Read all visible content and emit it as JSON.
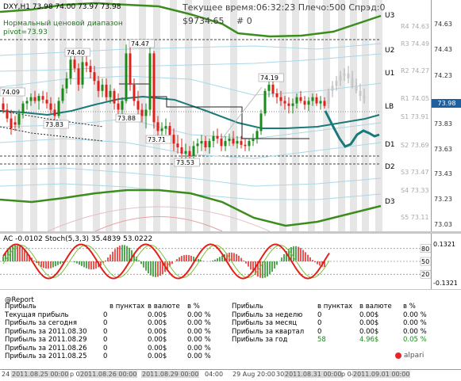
{
  "header": {
    "symbol": "DXY,H1",
    "ohlc": "73.98 74.00 73.97 73.98",
    "server_time": "Текущее время:06:32:23",
    "leverage": "Плечо:500",
    "spread": "Спрэд:0",
    "balance": "$9734.65",
    "positions": "# 0",
    "range_name": "Нормальный ценовой диапазон",
    "pivot": "pivot=73.93"
  },
  "levels": {
    "right_labels": [
      "U3",
      "U2",
      "U1",
      "LB",
      "D1",
      "D2",
      "D3"
    ],
    "grey_labels": [
      "R4 74.63",
      "R3 74.49",
      "R2 74.27",
      "R1 74.05",
      "S1 73.91",
      "S2 73.69",
      "S3 73.47",
      "S4 73.33",
      "S5 73.11"
    ]
  },
  "chart_labels": [
    "73.83",
    "74.09",
    "74.40",
    "74.47",
    "73.88",
    "73.71",
    "73.53",
    "74.19"
  ],
  "price_axis": [
    "74.63",
    "74.43",
    "74.23",
    "74.03",
    "73.83",
    "73.63",
    "73.43",
    "73.23",
    "73.03"
  ],
  "current_price": "73.98",
  "colors": {
    "bull": "#1a8a1a",
    "bear": "#e0201a",
    "envelope": "#3c8c1e",
    "ma": "#1a7a7a",
    "stripe": "#e6e6e6",
    "level_dash": "#333333",
    "current_bg": "#1f5f9f"
  },
  "oscillator": {
    "title": "AC -0.0102   Stoch(5,3,3) 35.4839 53.0222",
    "axis": [
      "80",
      "50",
      "20"
    ],
    "axis_values": [
      "0.1321",
      "-0.1321"
    ],
    "levels": [
      80,
      50,
      20
    ]
  },
  "report": {
    "title": "@Report",
    "col_headers": [
      "в пунктах",
      "в валюте",
      "в %"
    ],
    "left_rows": [
      {
        "label": "Прибыль",
        "points": "",
        "money": "",
        "pct": ""
      },
      {
        "label": "Текущая прибыль",
        "points": "0",
        "money": "0.00$",
        "pct": "0.00 %"
      },
      {
        "label": "Прибыль за сегодня",
        "points": "0",
        "money": "0.00$",
        "pct": "0.00 %"
      },
      {
        "label": "Прибыль за 2011.08.30",
        "points": "0",
        "money": "0.00$",
        "pct": "0.00 %"
      },
      {
        "label": "Прибыль за 2011.08.29",
        "points": "0",
        "money": "0.00$",
        "pct": "0.00 %"
      },
      {
        "label": "Прибыль за 2011.08.26",
        "points": "0",
        "money": "0.00$",
        "pct": "0.00 %"
      },
      {
        "label": "Прибыль за 2011.08.25",
        "points": "0",
        "money": "0.00$",
        "pct": "0.00 %"
      }
    ],
    "right_rows": [
      {
        "label": "Прибыль",
        "points": "",
        "money": "",
        "pct": ""
      },
      {
        "label": "Прибыль за неделю",
        "points": "0",
        "money": "0.00$",
        "pct": "0.00 %"
      },
      {
        "label": "Прибыль за месяц",
        "points": "0",
        "money": "0.00$",
        "pct": "0.00 %"
      },
      {
        "label": "Прибыль за квартал",
        "points": "0",
        "money": "0.00$",
        "pct": "0.00 %"
      },
      {
        "label": "Прибыль за год",
        "points": "58",
        "money": "4.96$",
        "pct": "0.05 %"
      }
    ],
    "brand": "alpari"
  },
  "time_axis": {
    "plain": [
      "24",
      "29 Aug 20:00",
      "30"
    ],
    "tabs": [
      "2011.08.25 00:00",
      "2011.08.26 00:00",
      "2011.08.29 00:00",
      "2011.08.31 00:00",
      "2011.09.01 00:00"
    ],
    "extra": [
      "p 04",
      "04:00",
      "p 04"
    ]
  }
}
